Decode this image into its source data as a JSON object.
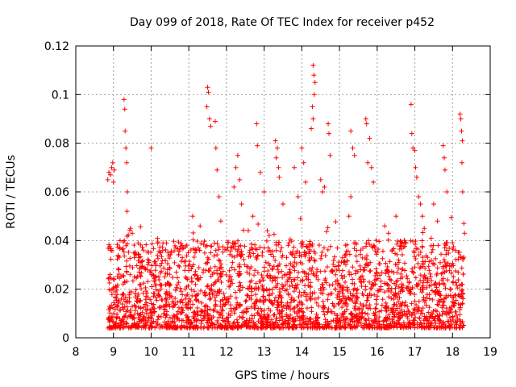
{
  "chart_data": {
    "type": "scatter",
    "title": "Day 099 of 2018, Rate Of TEC Index for receiver p452",
    "xlabel": "GPS time / hours",
    "ylabel": "ROTI / TECUs",
    "xlim": [
      8,
      19
    ],
    "ylim": [
      0,
      0.12
    ],
    "xticks": [
      8,
      9,
      10,
      11,
      12,
      13,
      14,
      15,
      16,
      17,
      18,
      19
    ],
    "yticks": [
      0,
      0.02,
      0.04,
      0.06,
      0.08,
      0.1,
      0.12
    ],
    "ytick_labels": [
      "0",
      "0.02",
      "0.04",
      "0.06",
      "0.08",
      "0.1",
      "0.12"
    ],
    "grid": true,
    "marker": "+",
    "marker_color": "#ff0000",
    "series": [
      {
        "name": "ROTI",
        "points": [
          [
            8.85,
            0.065
          ],
          [
            8.88,
            0.068
          ],
          [
            8.92,
            0.067
          ],
          [
            8.95,
            0.07
          ],
          [
            8.98,
            0.072
          ],
          [
            9.0,
            0.064
          ],
          [
            9.02,
            0.069
          ],
          [
            9.28,
            0.098
          ],
          [
            9.3,
            0.094
          ],
          [
            9.31,
            0.085
          ],
          [
            9.33,
            0.078
          ],
          [
            9.35,
            0.072
          ],
          [
            9.37,
            0.06
          ],
          [
            9.36,
            0.052
          ],
          [
            9.45,
            0.045
          ],
          [
            9.5,
            0.043
          ],
          [
            10.0,
            0.078
          ],
          [
            11.1,
            0.05
          ],
          [
            11.3,
            0.046
          ],
          [
            11.5,
            0.103
          ],
          [
            11.52,
            0.101
          ],
          [
            11.48,
            0.095
          ],
          [
            11.55,
            0.09
          ],
          [
            11.58,
            0.087
          ],
          [
            11.7,
            0.089
          ],
          [
            11.72,
            0.078
          ],
          [
            11.75,
            0.069
          ],
          [
            11.8,
            0.058
          ],
          [
            11.85,
            0.048
          ],
          [
            12.2,
            0.062
          ],
          [
            12.25,
            0.07
          ],
          [
            12.3,
            0.075
          ],
          [
            12.35,
            0.065
          ],
          [
            12.4,
            0.055
          ],
          [
            12.7,
            0.05
          ],
          [
            12.8,
            0.088
          ],
          [
            12.82,
            0.079
          ],
          [
            12.9,
            0.068
          ],
          [
            13.0,
            0.06
          ],
          [
            13.3,
            0.081
          ],
          [
            13.35,
            0.078
          ],
          [
            13.32,
            0.074
          ],
          [
            13.38,
            0.07
          ],
          [
            13.4,
            0.066
          ],
          [
            13.5,
            0.055
          ],
          [
            13.8,
            0.07
          ],
          [
            13.9,
            0.058
          ],
          [
            14.0,
            0.078
          ],
          [
            14.05,
            0.072
          ],
          [
            14.1,
            0.064
          ],
          [
            14.3,
            0.112
          ],
          [
            14.32,
            0.108
          ],
          [
            14.35,
            0.105
          ],
          [
            14.33,
            0.1
          ],
          [
            14.28,
            0.095
          ],
          [
            14.3,
            0.09
          ],
          [
            14.25,
            0.086
          ],
          [
            14.5,
            0.065
          ],
          [
            14.55,
            0.06
          ],
          [
            14.6,
            0.062
          ],
          [
            14.7,
            0.088
          ],
          [
            14.72,
            0.084
          ],
          [
            14.75,
            0.075
          ],
          [
            15.3,
            0.085
          ],
          [
            15.35,
            0.078
          ],
          [
            15.4,
            0.075
          ],
          [
            15.3,
            0.058
          ],
          [
            15.25,
            0.05
          ],
          [
            15.7,
            0.09
          ],
          [
            15.72,
            0.088
          ],
          [
            15.75,
            0.072
          ],
          [
            15.8,
            0.082
          ],
          [
            15.85,
            0.07
          ],
          [
            15.9,
            0.064
          ],
          [
            16.2,
            0.046
          ],
          [
            16.3,
            0.043
          ],
          [
            16.5,
            0.05
          ],
          [
            16.9,
            0.096
          ],
          [
            16.92,
            0.084
          ],
          [
            16.95,
            0.078
          ],
          [
            17.0,
            0.077
          ],
          [
            17.02,
            0.07
          ],
          [
            17.05,
            0.066
          ],
          [
            17.1,
            0.058
          ],
          [
            17.15,
            0.055
          ],
          [
            17.2,
            0.05
          ],
          [
            17.25,
            0.045
          ],
          [
            17.5,
            0.055
          ],
          [
            17.6,
            0.048
          ],
          [
            17.75,
            0.079
          ],
          [
            17.78,
            0.074
          ],
          [
            17.8,
            0.069
          ],
          [
            17.85,
            0.06
          ],
          [
            18.2,
            0.092
          ],
          [
            18.22,
            0.09
          ],
          [
            18.24,
            0.085
          ],
          [
            18.26,
            0.081
          ],
          [
            18.25,
            0.072
          ],
          [
            18.27,
            0.06
          ],
          [
            18.3,
            0.047
          ],
          [
            18.32,
            0.043
          ]
        ]
      }
    ]
  }
}
